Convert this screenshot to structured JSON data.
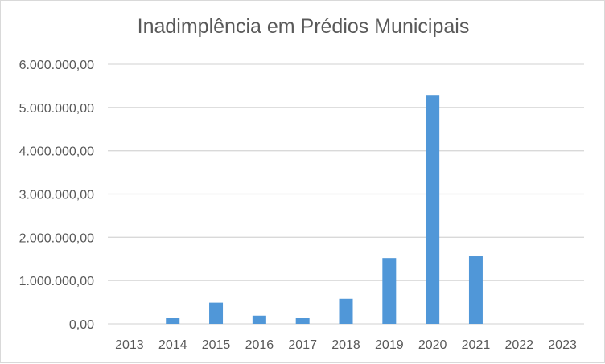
{
  "chart_data": {
    "type": "bar",
    "title": "Inadimplência em Prédios Municipais",
    "xlabel": "",
    "ylabel": "",
    "categories": [
      "2013",
      "2014",
      "2015",
      "2016",
      "2017",
      "2018",
      "2019",
      "2020",
      "2021",
      "2022",
      "2023"
    ],
    "values": [
      0,
      130000,
      490000,
      190000,
      130000,
      580000,
      1520000,
      5290000,
      1560000,
      0,
      0
    ],
    "ylim": [
      0,
      6000000
    ],
    "yticks": [
      0,
      1000000,
      2000000,
      3000000,
      4000000,
      5000000,
      6000000
    ],
    "ytick_labels": [
      "0,00",
      "1.000.000,00",
      "2.000.000,00",
      "3.000.000,00",
      "4.000.000,00",
      "5.000.000,00",
      "6.000.000,00"
    ],
    "grid": true,
    "legend": "none",
    "bar_color": "#5097D8",
    "grid_color": "#D9D9D9"
  }
}
